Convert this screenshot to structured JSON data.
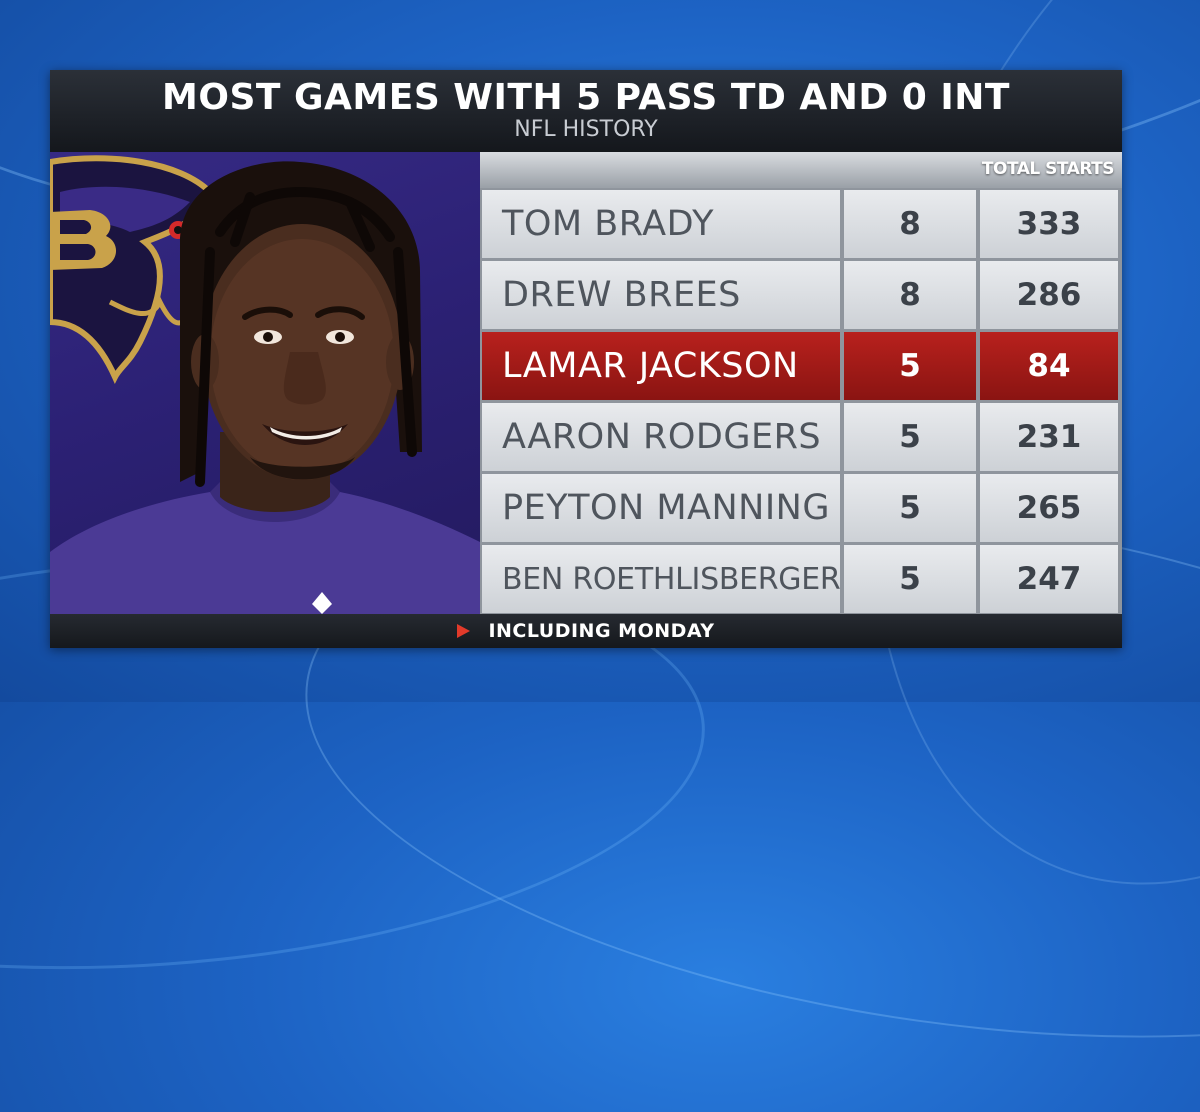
{
  "graphic": {
    "title": "MOST GAMES WITH 5 PASS TD AND 0 INT",
    "subtitle": "NFL HISTORY",
    "column_header": "TOTAL STARTS",
    "rows": [
      {
        "name": "TOM BRADY",
        "games": "8",
        "total_starts": "333",
        "highlighted": false
      },
      {
        "name": "DREW BREES",
        "games": "8",
        "total_starts": "286",
        "highlighted": false
      },
      {
        "name": "LAMAR JACKSON",
        "games": "5",
        "total_starts": "84",
        "highlighted": true
      },
      {
        "name": "AARON RODGERS",
        "games": "5",
        "total_starts": "231",
        "highlighted": false
      },
      {
        "name": "PEYTON MANNING",
        "games": "5",
        "total_starts": "265",
        "highlighted": false
      },
      {
        "name": "BEN ROETHLISBERGER",
        "games": "5",
        "total_starts": "247",
        "highlighted": false
      }
    ],
    "footer": "INCLUDING MONDAY",
    "footer_icon": "play-triangle-icon"
  },
  "colors": {
    "highlight": "#a01a17",
    "photo_background": "#2c2175",
    "background": "#1d63c4"
  }
}
